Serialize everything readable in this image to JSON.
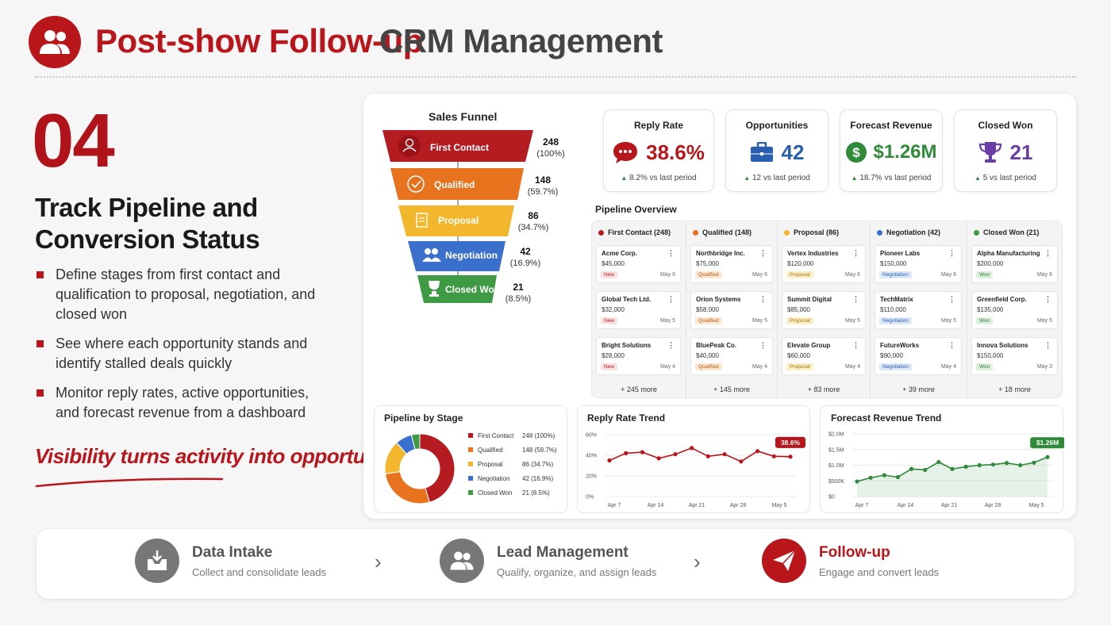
{
  "header": {
    "title_accent": "Post-show Follow-up",
    "title_rest": "CRM Management"
  },
  "section": {
    "number": "04",
    "heading": "Track Pipeline and Conversion Status",
    "bullets": [
      "Define stages from first contact and qualification to proposal, negotiation, and closed won",
      "See where each opportunity stands and identify stalled deals quickly",
      "Monitor reply rates, active opportunities, and forecast revenue from a dashboard"
    ],
    "tagline": "Visibility turns activity into opportunity"
  },
  "funnel": {
    "title": "Sales Funnel",
    "stages": [
      {
        "label": "First Contact",
        "count": "248",
        "pct": "(100%)",
        "color": "#b51c22"
      },
      {
        "label": "Qualified",
        "count": "148",
        "pct": "(59.7%)",
        "color": "#e8731f"
      },
      {
        "label": "Proposal",
        "count": "86",
        "pct": "(34.7%)",
        "color": "#f3b72e"
      },
      {
        "label": "Negotiation",
        "count": "42",
        "pct": "(16.9%)",
        "color": "#3a6fcb"
      },
      {
        "label": "Closed Won",
        "count": "21",
        "pct": "(8.5%)",
        "color": "#3f9a44"
      }
    ]
  },
  "kpis": [
    {
      "title": "Reply Rate",
      "value": "38.6%",
      "delta": "8.2% vs last period",
      "color": "#b8161b",
      "icon": "chat-icon"
    },
    {
      "title": "Opportunities",
      "value": "42",
      "delta": "12 vs last period",
      "color": "#2a5fb0",
      "icon": "briefcase-icon"
    },
    {
      "title": "Forecast Revenue",
      "value": "$1.26M",
      "delta": "18.7% vs last period",
      "color": "#2f8a3a",
      "icon": "dollar-icon"
    },
    {
      "title": "Closed Won",
      "value": "21",
      "delta": "5 vs last period",
      "color": "#6a3ea6",
      "icon": "trophy-icon"
    }
  ],
  "pipeline": {
    "title": "Pipeline Overview",
    "columns": [
      {
        "label": "First Contact (248)",
        "color": "#b51c22",
        "more": "+ 245 more",
        "cards": [
          {
            "name": "Acme Corp.",
            "amount": "$45,000",
            "tag": "New",
            "date": "May 6"
          },
          {
            "name": "Global Tech Ltd.",
            "amount": "$32,000",
            "tag": "New",
            "date": "May 5"
          },
          {
            "name": "Bright Solutions",
            "amount": "$28,000",
            "tag": "New",
            "date": "May 4"
          }
        ]
      },
      {
        "label": "Qualified (148)",
        "color": "#e8731f",
        "more": "+ 145 more",
        "cards": [
          {
            "name": "Northbridge Inc.",
            "amount": "$75,000",
            "tag": "Qualified",
            "date": "May 6"
          },
          {
            "name": "Orion Systems",
            "amount": "$58,000",
            "tag": "Qualified",
            "date": "May 5"
          },
          {
            "name": "BluePeak Co.",
            "amount": "$40,000",
            "tag": "Qualified",
            "date": "May 4"
          }
        ]
      },
      {
        "label": "Proposal (86)",
        "color": "#f3b72e",
        "more": "+ 83 more",
        "cards": [
          {
            "name": "Vertex Industries",
            "amount": "$120,000",
            "tag": "Proposal",
            "date": "May 6"
          },
          {
            "name": "Summit Digital",
            "amount": "$85,000",
            "tag": "Proposal",
            "date": "May 5"
          },
          {
            "name": "Elevate Group",
            "amount": "$60,000",
            "tag": "Proposal",
            "date": "May 4"
          }
        ]
      },
      {
        "label": "Negotiation (42)",
        "color": "#3a6fcb",
        "more": "+ 39 more",
        "cards": [
          {
            "name": "Pioneer Labs",
            "amount": "$150,000",
            "tag": "Negotiation",
            "date": "May 6"
          },
          {
            "name": "TechMatrix",
            "amount": "$110,000",
            "tag": "Negotiation",
            "date": "May 5"
          },
          {
            "name": "FutureWorks",
            "amount": "$90,000",
            "tag": "Negotiation",
            "date": "May 4"
          }
        ]
      },
      {
        "label": "Closed Won (21)",
        "color": "#3f9a44",
        "more": "+ 18 more",
        "cards": [
          {
            "name": "Alpha Manufacturing",
            "amount": "$200,000",
            "tag": "Won",
            "date": "May 6"
          },
          {
            "name": "Greenfield Corp.",
            "amount": "$135,000",
            "tag": "Won",
            "date": "May 5"
          },
          {
            "name": "Innova Solutions",
            "amount": "$150,000",
            "tag": "Won",
            "date": "May 3"
          }
        ]
      }
    ]
  },
  "chart_data": [
    {
      "type": "pie",
      "title": "Pipeline by Stage",
      "categories": [
        "First Contact",
        "Qualified",
        "Proposal",
        "Negotiation",
        "Closed Won"
      ],
      "values": [
        248,
        148,
        86,
        42,
        21
      ],
      "labels": [
        "248 (100%)",
        "148 (59.7%)",
        "86 (34.7%)",
        "42 (16.9%)",
        "21 (8.5%)"
      ],
      "colors": [
        "#b51c22",
        "#e8731f",
        "#f3b72e",
        "#3a6fcb",
        "#3f9a44"
      ]
    },
    {
      "type": "line",
      "title": "Reply Rate Trend",
      "xticks": [
        "Apr 7",
        "Apr 14",
        "Apr 21",
        "Apr 28",
        "May 5"
      ],
      "yticks": [
        "60%",
        "40%",
        "20%",
        "0%"
      ],
      "ylim": [
        0,
        60
      ],
      "values": [
        35,
        42,
        43,
        37,
        41,
        47,
        39,
        41,
        34,
        44,
        39,
        38.6
      ],
      "end_label": "38.6%",
      "color": "#b8161b"
    },
    {
      "type": "area",
      "title": "Forecast Revenue Trend",
      "xticks": [
        "Apr 7",
        "Apr 14",
        "Apr 21",
        "Apr 28",
        "May 5"
      ],
      "yticks": [
        "$2.0M",
        "$1.5M",
        "$1.0M",
        "$500K",
        "$0"
      ],
      "ylim": [
        0,
        2.0
      ],
      "values": [
        0.48,
        0.6,
        0.68,
        0.62,
        0.88,
        0.85,
        1.1,
        0.88,
        0.95,
        1.0,
        1.02,
        1.07,
        1.0,
        1.08,
        1.26
      ],
      "end_label": "$1.26M",
      "color": "#2f8a3a"
    }
  ],
  "workflow": [
    {
      "title": "Data Intake",
      "desc": "Collect and consolidate leads",
      "color": "#777777",
      "icon": "inbox-download-icon"
    },
    {
      "title": "Lead Management",
      "desc": "Qualify, organize, and assign leads",
      "color": "#777777",
      "icon": "users-icon"
    },
    {
      "title": "Follow-up",
      "desc": "Engage and convert leads",
      "color": "#b8161b",
      "icon": "paper-plane-icon"
    }
  ]
}
